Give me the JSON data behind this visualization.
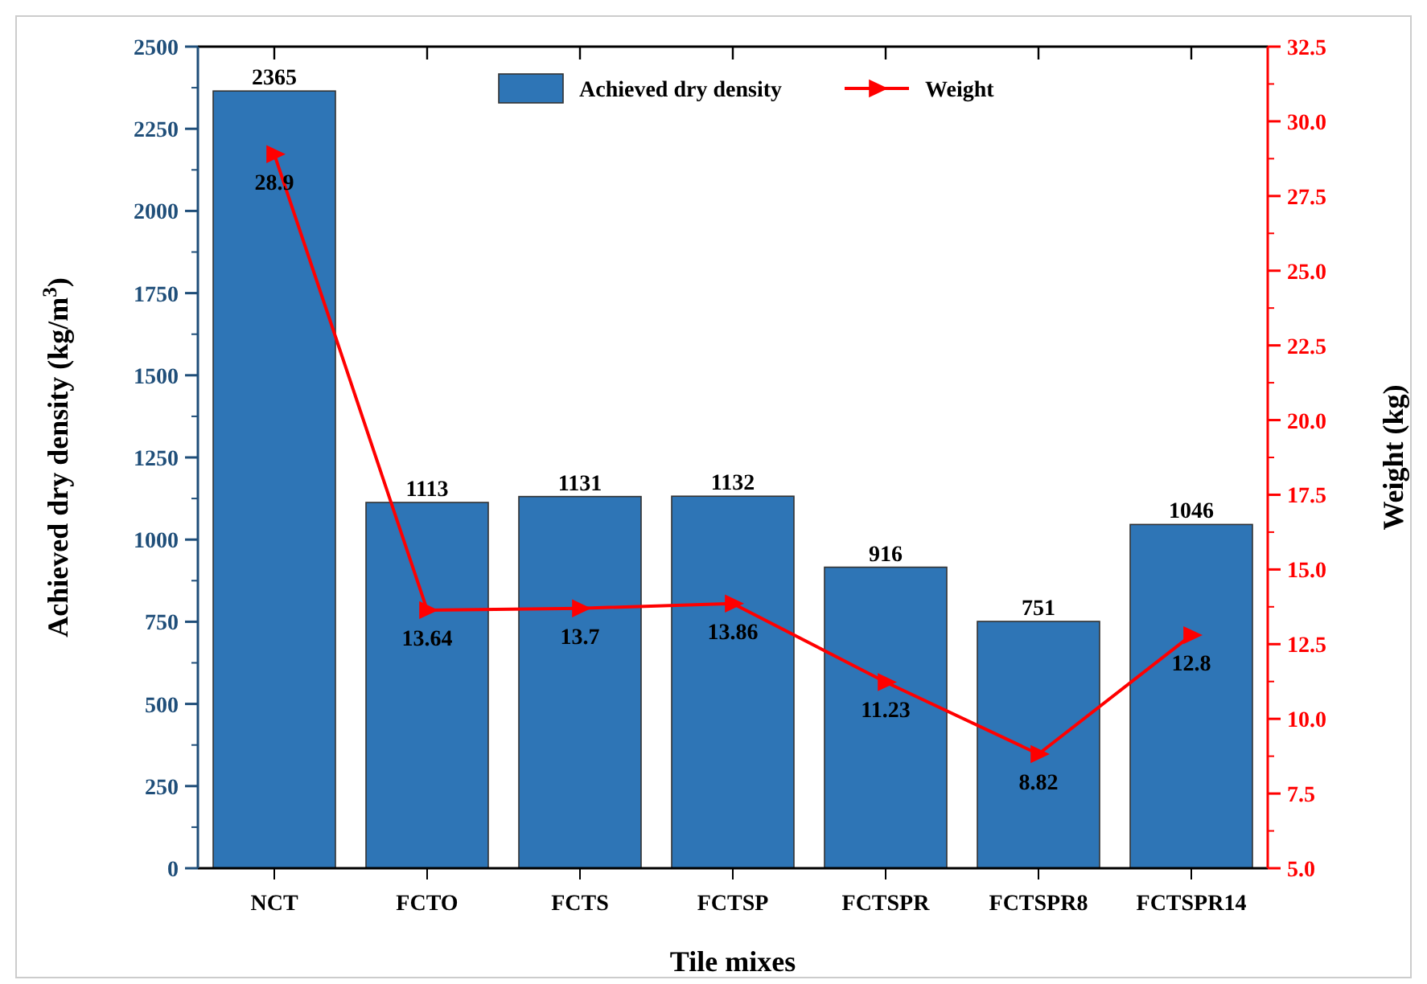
{
  "chart_data": {
    "type": "bar",
    "xlabel": "Tile mixes",
    "ylabel": "Achieved dry density (kg/m$^{3}$)",
    "y2label": "Weight (kg)",
    "categories": [
      "NCT",
      "FCTO",
      "FCTS",
      "FCTSP",
      "FCTSPR",
      "FCTSPR8",
      "FCTSPR14"
    ],
    "series": [
      {
        "name": "Achieved dry density",
        "color": "#2e75b6",
        "values": [
          2365,
          1113,
          1131,
          1132,
          916,
          751,
          1046
        ]
      },
      {
        "name": "Weight",
        "type": "line",
        "axis": "y2",
        "color": "#ff0000",
        "marker": "triangle",
        "values": [
          28.9,
          13.64,
          13.7,
          13.86,
          11.23,
          8.82,
          12.8
        ]
      }
    ],
    "ylim": [
      0,
      2500
    ],
    "yticks": [
      0,
      250,
      500,
      750,
      1000,
      1250,
      1500,
      1750,
      2000,
      2250,
      2500
    ],
    "y2lim": [
      5,
      32.5
    ],
    "y2ticks": [
      {
        "value": 5,
        "label": "5.0"
      },
      {
        "value": 7.5,
        "label": "7.5"
      },
      {
        "value": 10,
        "label": "10.0"
      },
      {
        "value": 12.5,
        "label": "12.5"
      },
      {
        "value": 15,
        "label": "15.0"
      },
      {
        "value": 17.5,
        "label": "17.5"
      },
      {
        "value": 20,
        "label": "20.0"
      },
      {
        "value": 22.5,
        "label": "22.5"
      },
      {
        "value": 25,
        "label": "25.0"
      },
      {
        "value": 27.5,
        "label": "27.5"
      },
      {
        "value": 30,
        "label": "30.0"
      },
      {
        "value": 32.5,
        "label": "32.5"
      }
    ],
    "data_labels": true,
    "legend": "top",
    "grid": false
  }
}
